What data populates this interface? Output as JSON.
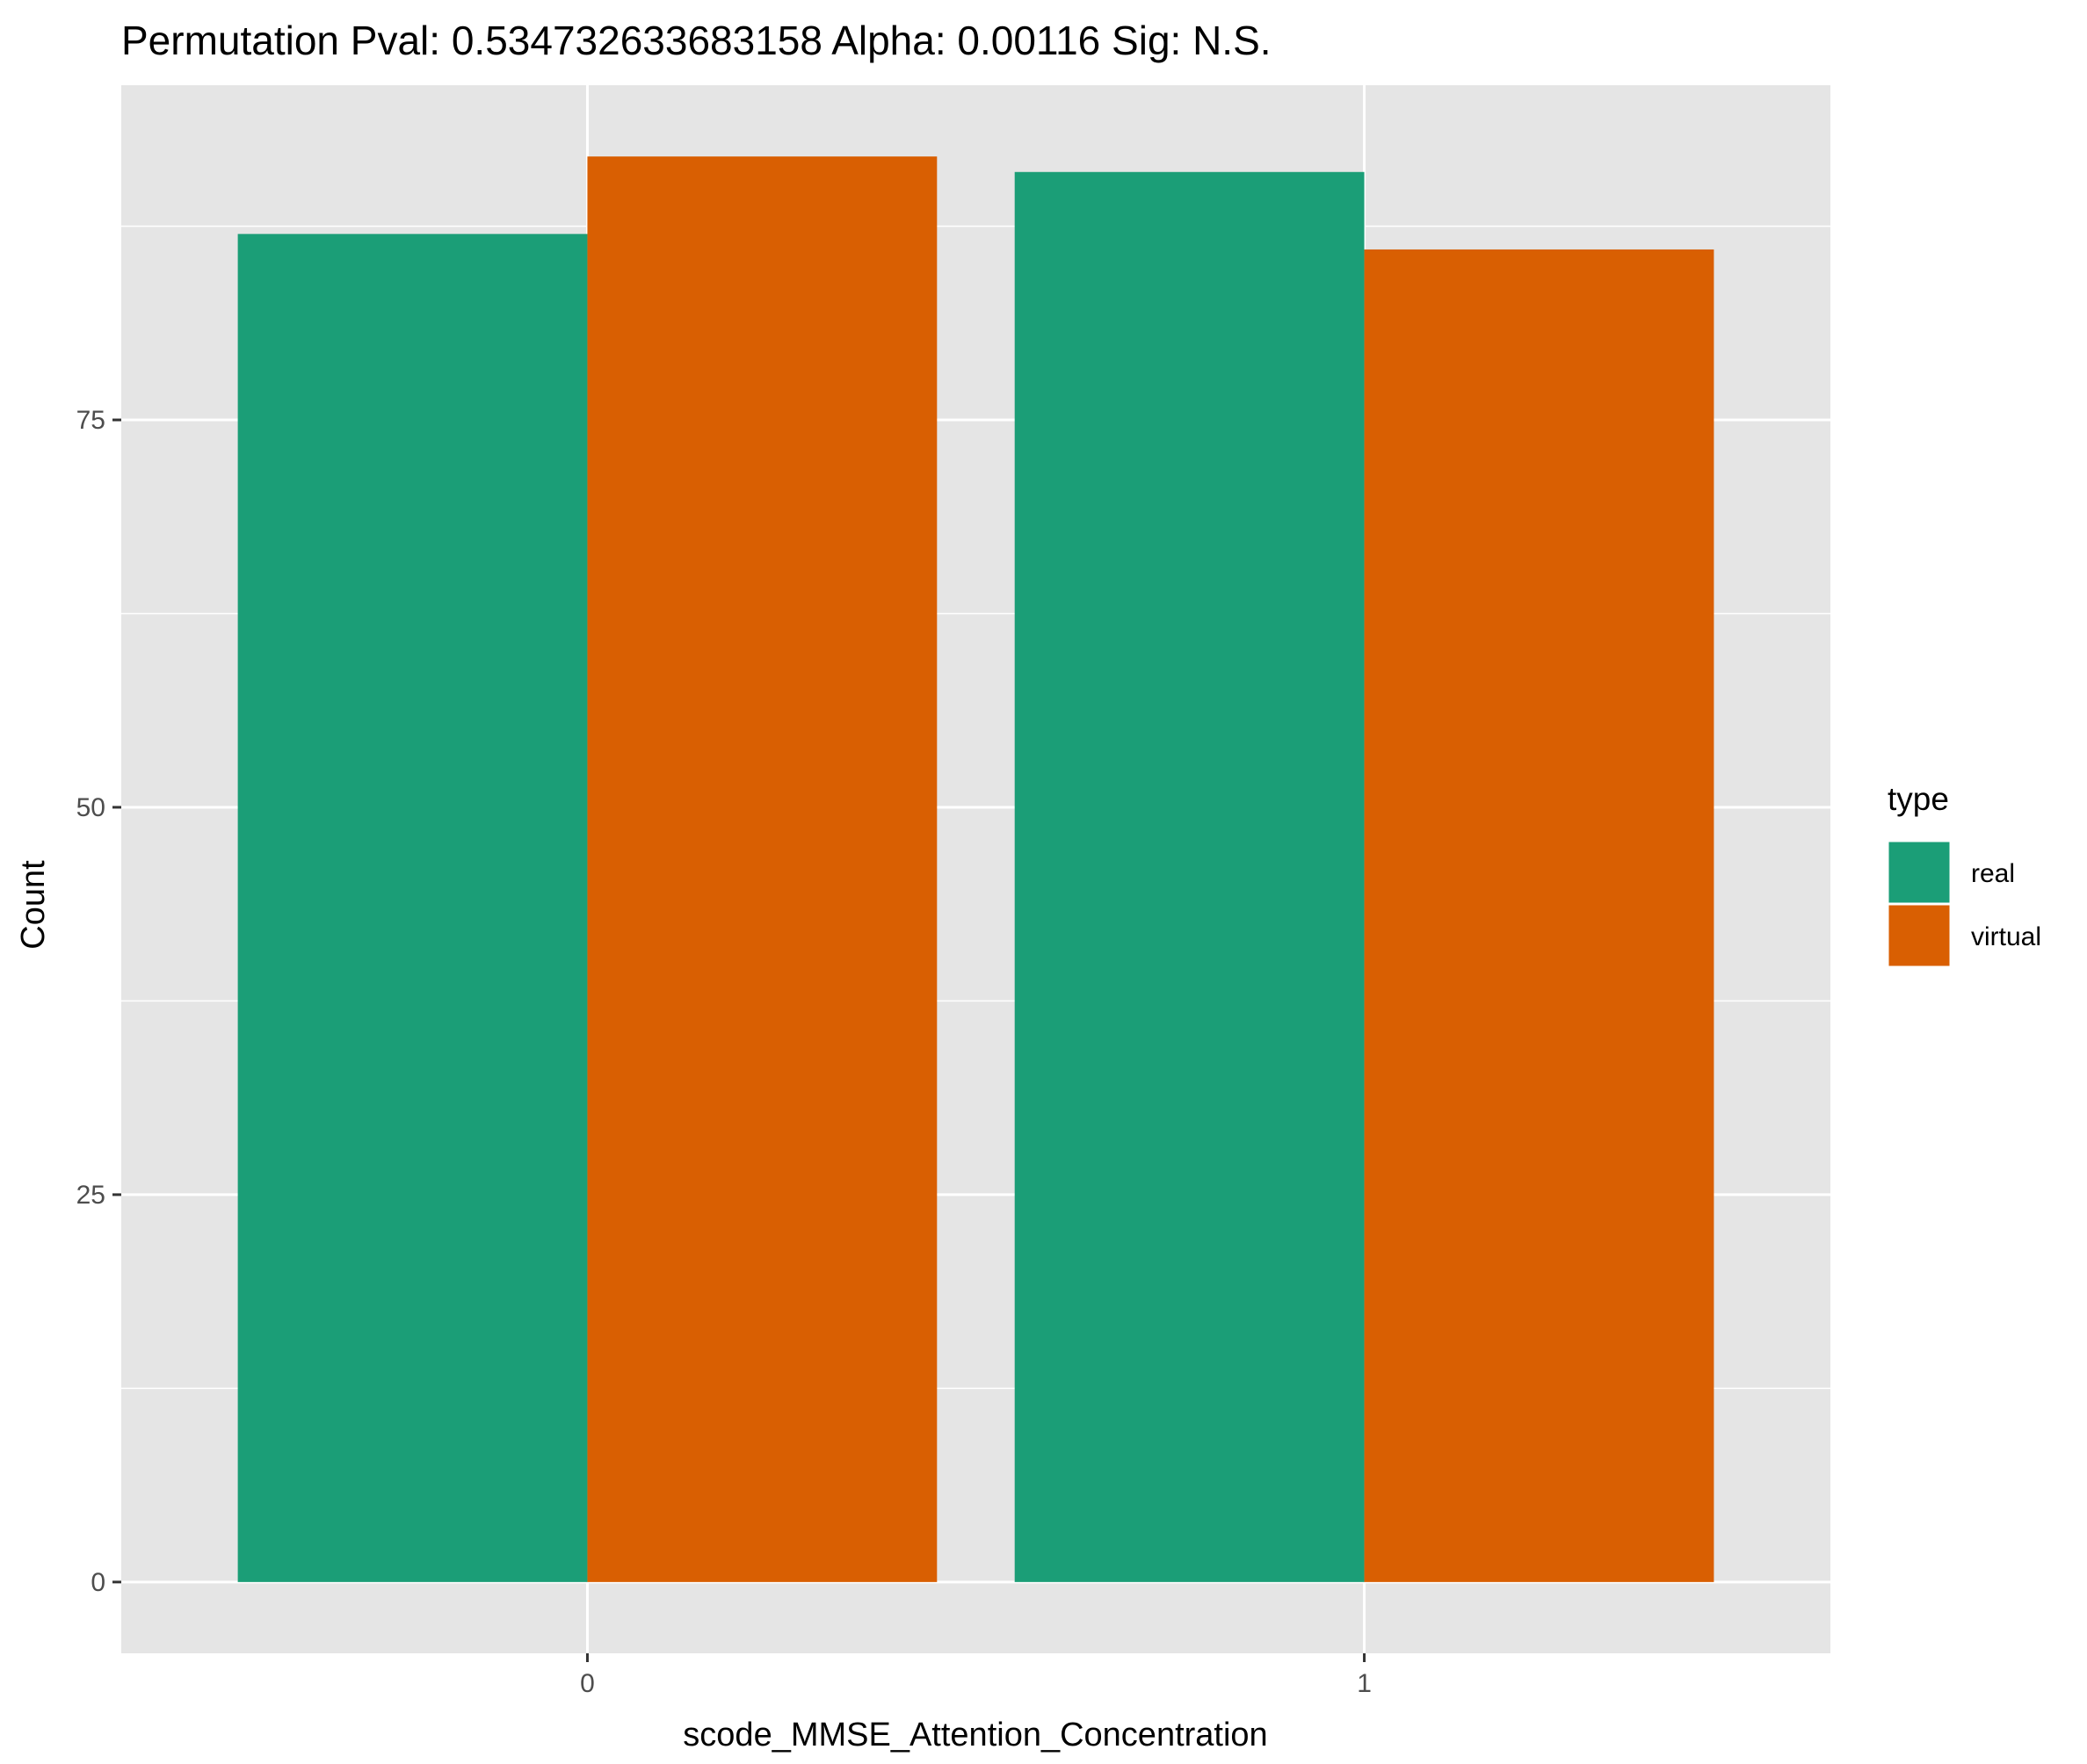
{
  "chart_data": {
    "type": "bar",
    "title": "Permutation Pval: 0.534732633683158 Alpha: 0.00116 Sig: N.S.",
    "xlabel": "scode_MMSE_Attention_Concentration",
    "ylabel": "Count",
    "categories": [
      "0",
      "1"
    ],
    "series": [
      {
        "name": "real",
        "color": "#1B9E77",
        "values": [
          87,
          91
        ]
      },
      {
        "name": "virtual",
        "color": "#D95F02",
        "values": [
          92,
          86
        ]
      }
    ],
    "ylim": [
      -4.6,
      96.6
    ],
    "yticks": [
      0,
      25,
      50,
      75
    ],
    "ytick_labels": [
      "0",
      "25",
      "50",
      "75"
    ],
    "grid": true,
    "legend": {
      "title": "type",
      "position": "right"
    },
    "colors": {
      "panel_background": "#E5E5E5",
      "grid": "#FFFFFF",
      "real": "#1B9E77",
      "virtual": "#D95F02"
    }
  }
}
